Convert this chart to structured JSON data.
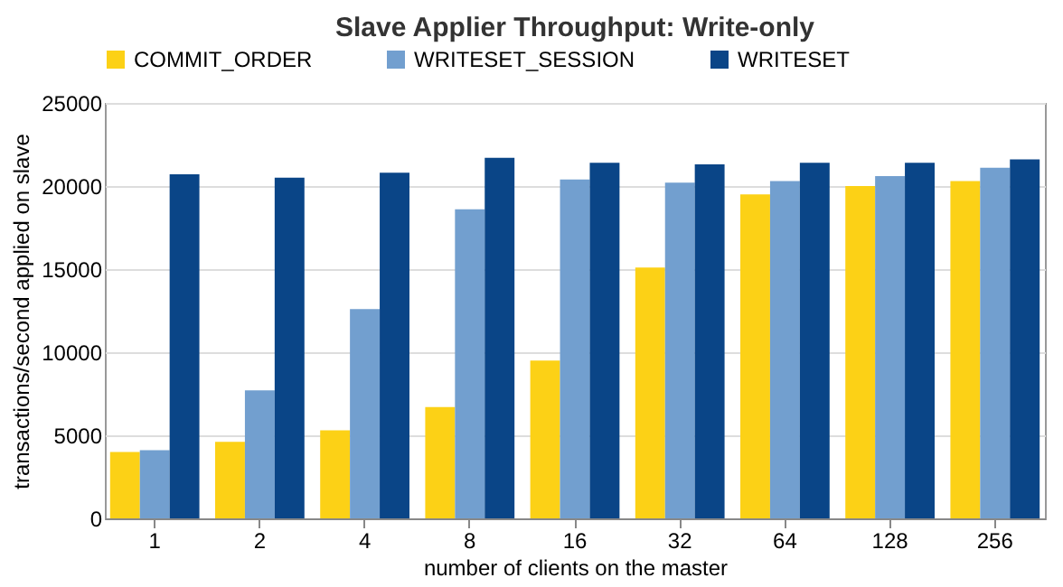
{
  "chart_data": {
    "type": "bar",
    "title": "Slave Applier Throughput: Write-only",
    "xlabel": "number of clients on the master",
    "ylabel": "transactions/second applied on slave",
    "categories": [
      "1",
      "2",
      "4",
      "8",
      "16",
      "32",
      "64",
      "128",
      "256"
    ],
    "series": [
      {
        "name": "COMMIT_ORDER",
        "color": "#fcd116",
        "values": [
          4000,
          4600,
          5300,
          6700,
          9500,
          15100,
          19500,
          20000,
          20300
        ]
      },
      {
        "name": "WRITESET_SESSION",
        "color": "#729fcf",
        "values": [
          4100,
          7700,
          12600,
          18600,
          20400,
          20200,
          20300,
          20600,
          21100
        ]
      },
      {
        "name": "WRITESET",
        "color": "#0a4587",
        "values": [
          20700,
          20500,
          20800,
          21700,
          21400,
          21300,
          21400,
          21400,
          21600
        ]
      }
    ],
    "ylim": [
      0,
      25000
    ],
    "yticks": [
      0,
      5000,
      10000,
      15000,
      20000,
      25000
    ],
    "grid": "y",
    "legend": "top"
  }
}
